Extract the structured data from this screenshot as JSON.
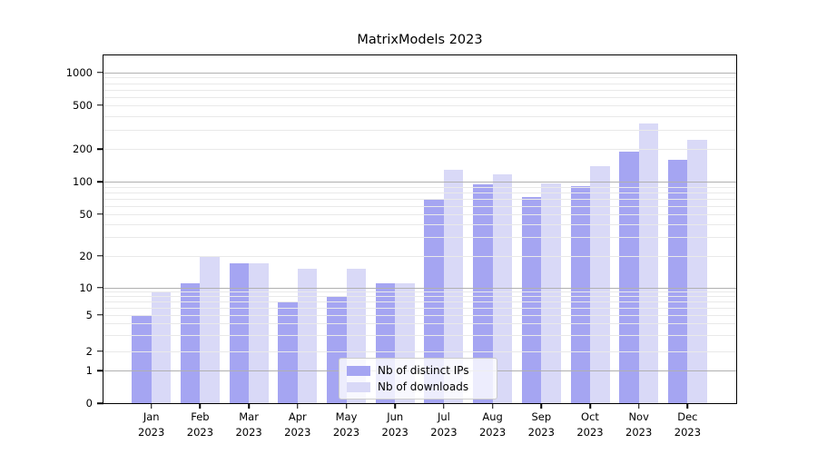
{
  "chart_data": {
    "type": "bar",
    "title": "MatrixModels 2023",
    "categories": [
      "Jan",
      "Feb",
      "Mar",
      "Apr",
      "May",
      "Jun",
      "Jul",
      "Aug",
      "Sep",
      "Oct",
      "Nov",
      "Dec"
    ],
    "x_year": "2023",
    "series": [
      {
        "name": "Nb of distinct IPs",
        "color": "#a5a5f2",
        "values": [
          5,
          11,
          17,
          7,
          8,
          11,
          70,
          95,
          72,
          92,
          190,
          160
        ]
      },
      {
        "name": "Nb of downloads",
        "color": "#d9d9f7",
        "values": [
          9,
          20,
          17,
          15,
          15,
          11,
          130,
          118,
          96,
          140,
          340,
          245
        ]
      }
    ],
    "yscale": "symlog",
    "yticks": [
      0,
      1,
      2,
      5,
      10,
      20,
      50,
      100,
      200,
      500,
      1000
    ],
    "ylim": [
      0,
      1400
    ],
    "grid": true,
    "legend_position": "lower center"
  },
  "colors": {
    "background": "#ffffff",
    "bar_ips": "#a5a5f2",
    "bar_downloads": "#d9d9f7",
    "grid_major": "#b0b0b0",
    "grid_minor": "#e9e9e9",
    "axis": "#000000",
    "text": "#000000"
  }
}
